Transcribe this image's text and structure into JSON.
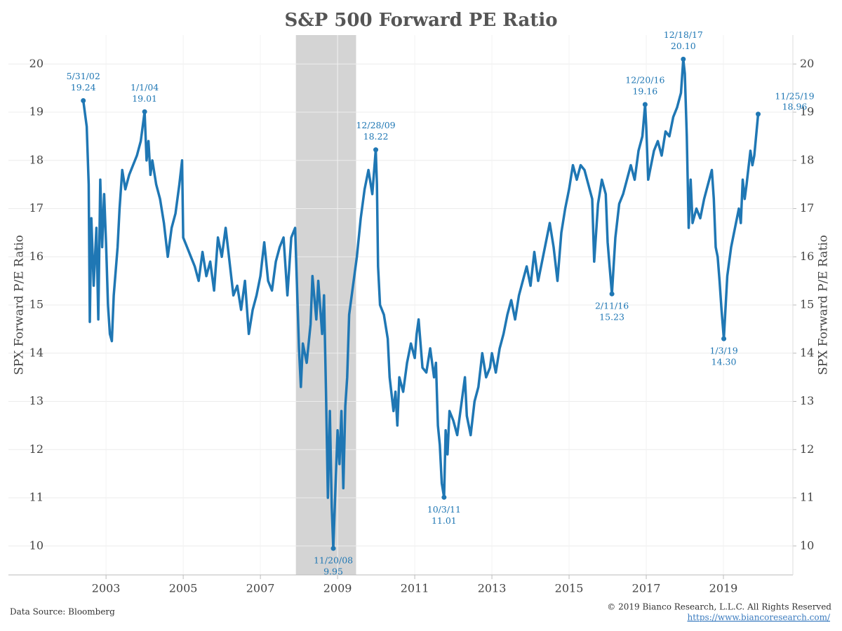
{
  "chart_data": {
    "type": "line",
    "title": "S&P 500 Forward PE Ratio",
    "y_label": "SPX Forward P/E Ratio",
    "y2_label": "SPX Forward P/E Ratio",
    "source": "Data Source: Bloomberg",
    "copyright": "© 2019 Bianco Research, L.L.C. All Rights Reserved",
    "url": "https://www.biancoresearch.com/",
    "xlim": [
      2000.47,
      2020.8
    ],
    "xticks": [
      2003,
      2005,
      2007,
      2009,
      2011,
      2013,
      2015,
      2017,
      2019
    ],
    "ylim": [
      9.4,
      20.6
    ],
    "yticks": [
      10,
      11,
      12,
      13,
      14,
      15,
      16,
      17,
      18,
      19,
      20
    ],
    "y2lim": [
      9.4,
      20.6
    ],
    "y2ticks": [
      10,
      11,
      12,
      13,
      14,
      15,
      16,
      17,
      18,
      19,
      20
    ],
    "grid": true,
    "shaded_range": [
      2007.92,
      2009.48
    ],
    "shade_color": "#d4d4d4",
    "series": [
      {
        "name": "SPX Forward P/E Ratio",
        "color": "#1f77b4",
        "x": [
          2002.41,
          2002.5,
          2002.55,
          2002.58,
          2002.62,
          2002.68,
          2002.75,
          2002.8,
          2002.85,
          2002.9,
          2002.95,
          2003.0,
          2003.05,
          2003.1,
          2003.15,
          2003.2,
          2003.3,
          2003.35,
          2003.42,
          2003.5,
          2003.6,
          2003.7,
          2003.8,
          2003.9,
          2004.0,
          2004.05,
          2004.1,
          2004.15,
          2004.2,
          2004.3,
          2004.4,
          2004.5,
          2004.6,
          2004.7,
          2004.8,
          2004.9,
          2004.97,
          2005.0,
          2005.1,
          2005.2,
          2005.3,
          2005.4,
          2005.5,
          2005.6,
          2005.7,
          2005.8,
          2005.9,
          2006.0,
          2006.1,
          2006.2,
          2006.3,
          2006.4,
          2006.5,
          2006.6,
          2006.7,
          2006.8,
          2006.9,
          2007.0,
          2007.1,
          2007.2,
          2007.3,
          2007.4,
          2007.5,
          2007.6,
          2007.7,
          2007.8,
          2007.9,
          2008.0,
          2008.05,
          2008.1,
          2008.2,
          2008.3,
          2008.35,
          2008.45,
          2008.5,
          2008.6,
          2008.65,
          2008.7,
          2008.75,
          2008.8,
          2008.85,
          2008.89,
          2008.95,
          2009.0,
          2009.05,
          2009.1,
          2009.15,
          2009.2,
          2009.25,
          2009.3,
          2009.4,
          2009.5,
          2009.6,
          2009.7,
          2009.8,
          2009.9,
          2009.99,
          2010.02,
          2010.05,
          2010.1,
          2010.2,
          2010.3,
          2010.35,
          2010.45,
          2010.5,
          2010.55,
          2010.6,
          2010.7,
          2010.8,
          2010.9,
          2011.0,
          2011.05,
          2011.1,
          2011.2,
          2011.3,
          2011.4,
          2011.5,
          2011.55,
          2011.6,
          2011.65,
          2011.7,
          2011.76,
          2011.8,
          2011.85,
          2011.9,
          2012.0,
          2012.1,
          2012.2,
          2012.3,
          2012.35,
          2012.45,
          2012.55,
          2012.65,
          2012.75,
          2012.85,
          2012.95,
          2013.0,
          2013.1,
          2013.2,
          2013.3,
          2013.4,
          2013.5,
          2013.6,
          2013.7,
          2013.8,
          2013.9,
          2014.0,
          2014.1,
          2014.2,
          2014.3,
          2014.4,
          2014.5,
          2014.6,
          2014.7,
          2014.8,
          2014.9,
          2015.0,
          2015.1,
          2015.2,
          2015.3,
          2015.4,
          2015.5,
          2015.6,
          2015.65,
          2015.75,
          2015.85,
          2015.95,
          2016.0,
          2016.05,
          2016.11,
          2016.2,
          2016.3,
          2016.4,
          2016.5,
          2016.6,
          2016.7,
          2016.8,
          2016.9,
          2016.97,
          2017.0,
          2017.05,
          2017.1,
          2017.2,
          2017.3,
          2017.4,
          2017.5,
          2017.6,
          2017.7,
          2017.8,
          2017.9,
          2017.96,
          2018.0,
          2018.05,
          2018.1,
          2018.15,
          2018.2,
          2018.3,
          2018.4,
          2018.5,
          2018.6,
          2018.7,
          2018.75,
          2018.8,
          2018.85,
          2018.9,
          2018.95,
          2019.01,
          2019.1,
          2019.2,
          2019.3,
          2019.4,
          2019.45,
          2019.5,
          2019.55,
          2019.6,
          2019.7,
          2019.75,
          2019.8,
          2019.9
        ],
        "values": [
          19.24,
          18.7,
          17.5,
          14.65,
          16.8,
          15.4,
          16.6,
          14.7,
          17.6,
          16.2,
          17.3,
          16.3,
          15.0,
          14.4,
          14.25,
          15.2,
          16.2,
          17.0,
          17.8,
          17.4,
          17.7,
          17.9,
          18.1,
          18.4,
          19.01,
          18.0,
          18.4,
          17.7,
          18.0,
          17.5,
          17.2,
          16.7,
          16.0,
          16.6,
          16.9,
          17.5,
          18.0,
          16.4,
          16.2,
          16.0,
          15.8,
          15.5,
          16.1,
          15.6,
          15.9,
          15.3,
          16.4,
          16.0,
          16.6,
          15.9,
          15.2,
          15.4,
          14.9,
          15.5,
          14.4,
          14.9,
          15.2,
          15.6,
          16.3,
          15.5,
          15.3,
          15.9,
          16.2,
          16.4,
          15.2,
          16.4,
          16.6,
          14.1,
          13.3,
          14.2,
          13.8,
          14.6,
          15.6,
          14.7,
          15.5,
          14.4,
          15.2,
          13.2,
          11.0,
          12.8,
          10.8,
          9.95,
          11.3,
          12.4,
          11.7,
          12.8,
          11.2,
          12.9,
          13.5,
          14.8,
          15.4,
          16.0,
          16.8,
          17.4,
          17.8,
          17.3,
          18.22,
          17.5,
          15.8,
          15.0,
          14.8,
          14.3,
          13.5,
          12.8,
          13.2,
          12.5,
          13.5,
          13.2,
          13.8,
          14.2,
          13.9,
          14.4,
          14.7,
          13.7,
          13.6,
          14.1,
          13.5,
          13.8,
          12.5,
          12.1,
          11.3,
          11.01,
          12.4,
          11.9,
          12.8,
          12.6,
          12.3,
          12.9,
          13.5,
          12.7,
          12.3,
          13.0,
          13.3,
          14.0,
          13.5,
          13.7,
          14.0,
          13.6,
          14.1,
          14.4,
          14.8,
          15.1,
          14.7,
          15.2,
          15.5,
          15.8,
          15.4,
          16.1,
          15.5,
          15.9,
          16.3,
          16.7,
          16.2,
          15.5,
          16.5,
          17.0,
          17.4,
          17.9,
          17.6,
          17.9,
          17.8,
          17.5,
          17.2,
          15.9,
          17.1,
          17.6,
          17.3,
          16.3,
          15.8,
          15.23,
          16.4,
          17.1,
          17.3,
          17.6,
          17.9,
          17.6,
          18.2,
          18.5,
          19.16,
          18.7,
          17.6,
          17.8,
          18.2,
          18.4,
          18.1,
          18.6,
          18.5,
          18.9,
          19.1,
          19.4,
          20.1,
          19.8,
          18.5,
          16.6,
          17.6,
          16.7,
          17.0,
          16.8,
          17.2,
          17.5,
          17.8,
          17.2,
          16.2,
          16.0,
          15.5,
          14.9,
          14.3,
          15.6,
          16.2,
          16.6,
          17.0,
          16.7,
          17.6,
          17.2,
          17.5,
          18.2,
          17.9,
          18.1,
          18.96
        ]
      }
    ],
    "annotations": [
      {
        "x": 2002.41,
        "value": 19.24,
        "date": "5/31/02",
        "value_label": "19.24",
        "position": "above"
      },
      {
        "x": 2004.0,
        "value": 19.01,
        "date": "1/1/04",
        "value_label": "19.01",
        "position": "above"
      },
      {
        "x": 2008.89,
        "value": 9.95,
        "date": "11/20/08",
        "value_label": "9.95",
        "position": "below"
      },
      {
        "x": 2009.99,
        "value": 18.22,
        "date": "12/28/09",
        "value_label": "18.22",
        "position": "above"
      },
      {
        "x": 2011.76,
        "value": 11.01,
        "date": "10/3/11",
        "value_label": "11.01",
        "position": "below"
      },
      {
        "x": 2016.11,
        "value": 15.23,
        "date": "2/11/16",
        "value_label": "15.23",
        "position": "below"
      },
      {
        "x": 2016.97,
        "value": 19.16,
        "date": "12/20/16",
        "value_label": "19.16",
        "position": "above"
      },
      {
        "x": 2017.96,
        "value": 20.1,
        "date": "12/18/17",
        "value_label": "20.10",
        "position": "above"
      },
      {
        "x": 2019.01,
        "value": 14.3,
        "date": "1/3/19",
        "value_label": "14.30",
        "position": "below"
      },
      {
        "x": 2019.9,
        "value": 18.96,
        "date": "11/25/19",
        "value_label": "18.96",
        "position": "right"
      }
    ]
  }
}
